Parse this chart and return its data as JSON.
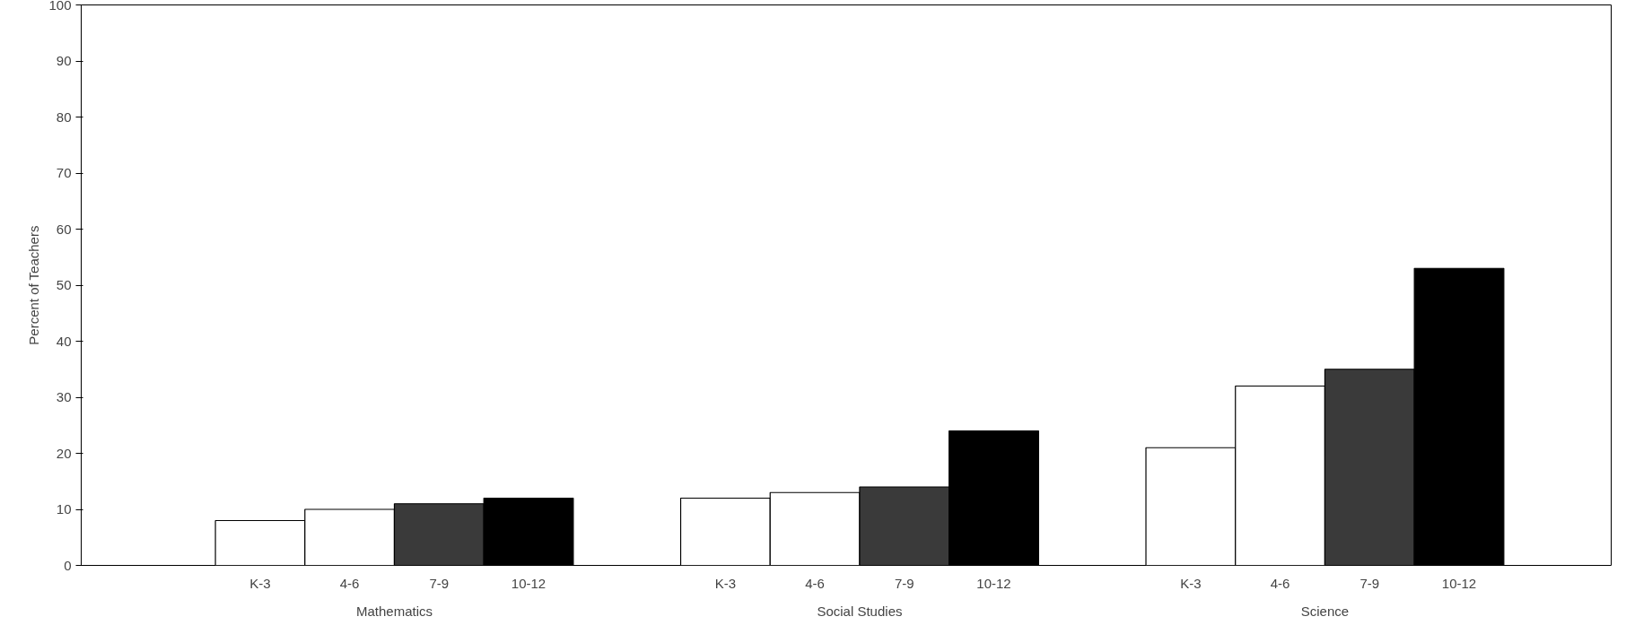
{
  "chart_data": {
    "type": "bar",
    "ylabel": "Percent of Teachers",
    "categories": [
      "Mathematics",
      "Social Studies",
      "Science"
    ],
    "series": [
      {
        "name": "K-3",
        "color": "#ffffff",
        "values": [
          8,
          12,
          21
        ]
      },
      {
        "name": "4-6",
        "color": "#ffffff",
        "values": [
          10,
          13,
          32
        ]
      },
      {
        "name": "7-9",
        "color": "#3a3a3a",
        "values": [
          11,
          14,
          35
        ]
      },
      {
        "name": "10-12",
        "color": "#000000",
        "values": [
          12,
          24,
          53
        ]
      }
    ],
    "ylim": [
      0,
      100
    ],
    "yticks": [
      0,
      10,
      20,
      30,
      40,
      50,
      60,
      70,
      80,
      90,
      100
    ],
    "grid": false
  }
}
